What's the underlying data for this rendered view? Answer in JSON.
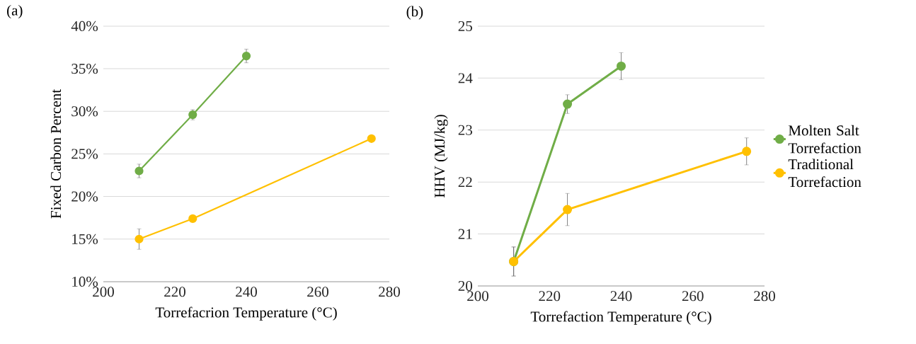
{
  "chart_data": [
    {
      "type": "line",
      "title": "(a)",
      "xlabel": "Torrefacrion Temperature (°C)",
      "ylabel": "Fixed Carbon Percent",
      "xlim": [
        200,
        280
      ],
      "xticks": [
        200,
        220,
        240,
        260,
        280
      ],
      "ylim": [
        10,
        40
      ],
      "yticks": [
        {
          "value": 10,
          "label": "10%"
        },
        {
          "value": 15,
          "label": "15%"
        },
        {
          "value": 20,
          "label": "20%"
        },
        {
          "value": 25,
          "label": "25%"
        },
        {
          "value": 30,
          "label": "30%"
        },
        {
          "value": 35,
          "label": "35%"
        },
        {
          "value": 40,
          "label": "40%"
        }
      ],
      "grid": "y",
      "marker": "circle",
      "line_style": "solid",
      "series": [
        {
          "color": "#70ad47",
          "x": [
            210,
            225,
            240
          ],
          "values": [
            23.0,
            29.6,
            36.5
          ],
          "errors": [
            0.8,
            0.6,
            0.8
          ]
        },
        {
          "color": "#ffc000",
          "x": [
            210,
            225,
            275
          ],
          "values": [
            15.0,
            17.4,
            26.8
          ],
          "errors": [
            1.2,
            null,
            null
          ]
        }
      ]
    },
    {
      "type": "line",
      "title": "(b)",
      "xlabel": "Torrefaction Temperature (°C)",
      "ylabel": "HHV (MJ/kg)",
      "xlim": [
        200,
        280
      ],
      "xticks": [
        200,
        220,
        240,
        260,
        280
      ],
      "ylim": [
        20,
        25
      ],
      "yticks": [
        20,
        21,
        22,
        23,
        24,
        25
      ],
      "grid": "y",
      "marker": "circle",
      "line_style": "solid",
      "legend": "right",
      "series": [
        {
          "name": "Molten Salt Torrefaction",
          "color": "#70ad47",
          "x": [
            210,
            225,
            240
          ],
          "values": [
            20.47,
            23.5,
            24.23
          ],
          "errors": [
            0.28,
            0.18,
            0.26
          ]
        },
        {
          "name": "Traditional Torrefaction",
          "color": "#ffc000",
          "x": [
            210,
            225,
            275
          ],
          "values": [
            20.47,
            21.47,
            22.59
          ],
          "errors": [
            0.28,
            0.31,
            0.26
          ]
        }
      ]
    }
  ]
}
